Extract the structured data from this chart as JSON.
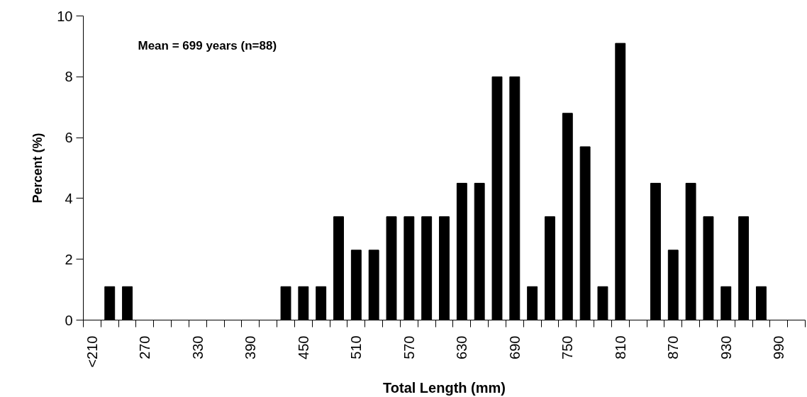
{
  "chart_data": {
    "type": "bar",
    "categories": [
      "<210",
      null,
      null,
      "270",
      null,
      null,
      "330",
      null,
      null,
      "390",
      null,
      null,
      "450",
      null,
      null,
      "510",
      null,
      null,
      "570",
      null,
      null,
      "630",
      null,
      null,
      "690",
      null,
      null,
      "750",
      null,
      null,
      "810",
      null,
      null,
      "870",
      null,
      null,
      "930",
      null,
      null,
      "990",
      null
    ],
    "values": [
      0,
      1.1,
      1.1,
      0,
      0,
      0,
      0,
      0,
      0,
      0,
      0,
      1.1,
      1.1,
      1.1,
      3.4,
      2.3,
      2.3,
      3.4,
      3.4,
      3.4,
      3.4,
      4.5,
      4.5,
      8.0,
      8.0,
      1.1,
      3.4,
      6.8,
      5.7,
      1.1,
      9.1,
      0,
      4.5,
      2.3,
      4.5,
      3.4,
      1.1,
      3.4,
      1.1,
      0,
      0
    ],
    "color": "#000000",
    "xlabel": "Total Length (mm)",
    "ylabel": "Percent (%)",
    "ylim": [
      0,
      10
    ],
    "yticks": [
      0,
      2,
      4,
      6,
      8,
      10
    ],
    "annotations": [
      "Mean = 699 years (n=88)"
    ],
    "grid": false
  }
}
